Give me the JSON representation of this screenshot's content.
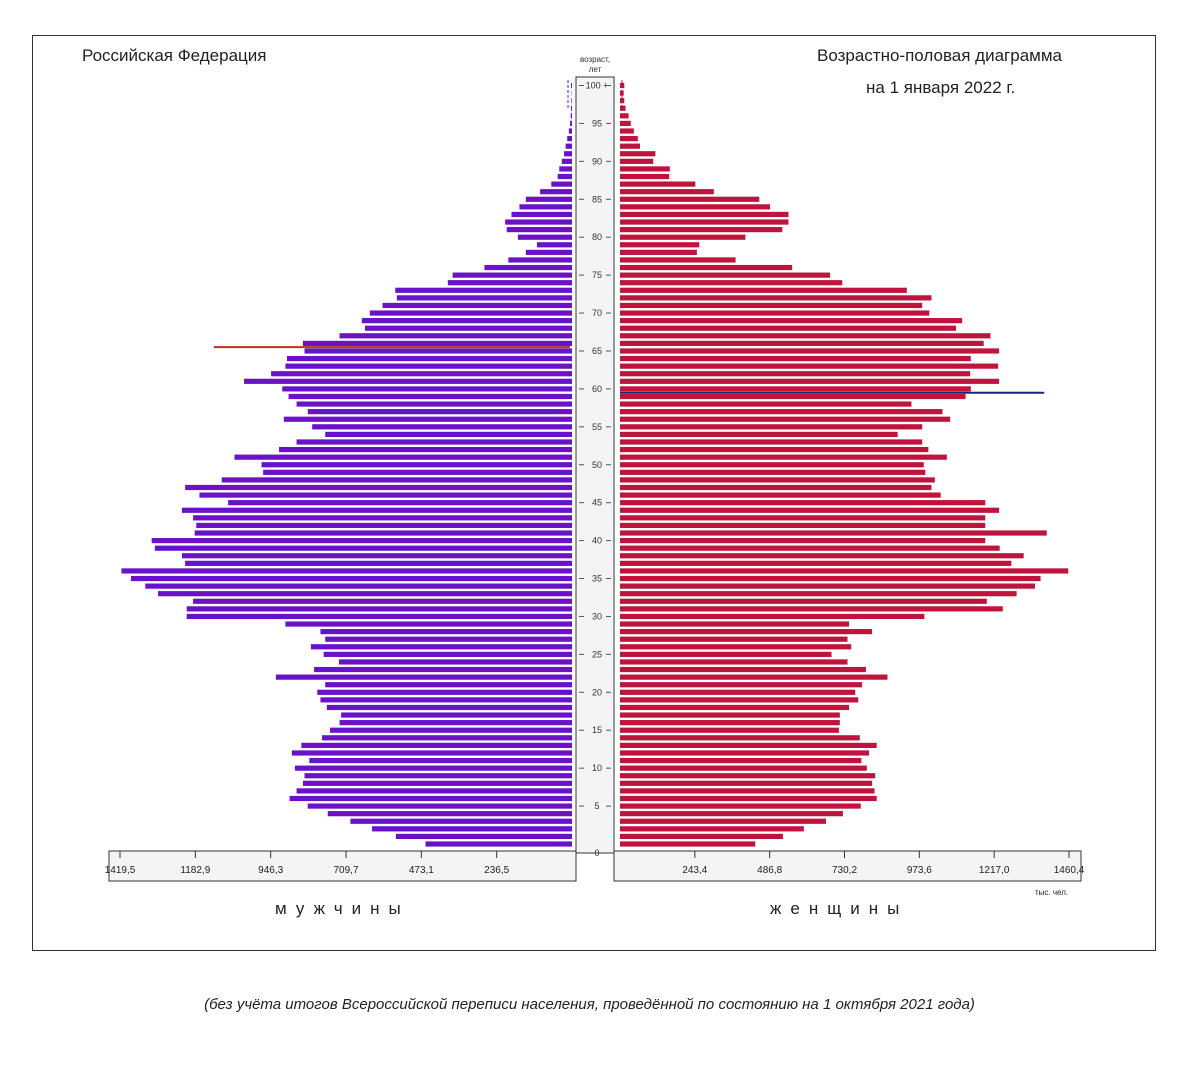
{
  "header": {
    "region": "Российская Федерация",
    "title_line1": "Возрастно-половая диаграмма",
    "title_line2": "на 1 января 2022 г."
  },
  "labels": {
    "men": "мужчины",
    "women": "женщины",
    "unit": "тыс. чел.",
    "footnote": "(без учёта итогов Всероссийской переписи населения, проведённой по состоянию на 1 октября 2021 года)"
  },
  "colors": {
    "men": "#6a12c8",
    "women": "#c0143c",
    "men_marker": "#c0301a",
    "women_marker": "#1a237e"
  },
  "chart_data": {
    "type": "bar",
    "orientation": "horizontal-pyramid",
    "age_axis": {
      "title": "возраст, лет",
      "range": [
        0,
        100
      ],
      "tick_labels": [
        "0",
        "5",
        "10",
        "15",
        "20",
        "25",
        "30",
        "35",
        "40",
        "45",
        "50",
        "55",
        "60",
        "65",
        "70",
        "75",
        "80",
        "85",
        "90",
        "95",
        "100 +"
      ]
    },
    "men_axis": {
      "xlim": [
        0,
        1419.5
      ],
      "tick_labels": [
        "1419,5",
        "1182,9",
        "946,3",
        "709,7",
        "473,1",
        "236,5"
      ]
    },
    "women_axis": {
      "xlim": [
        0,
        1460.4
      ],
      "tick_labels": [
        "243,4",
        "486,8",
        "730,2",
        "973,6",
        "1217,0",
        "1460,4"
      ]
    },
    "ages": [
      0,
      1,
      2,
      3,
      4,
      5,
      6,
      7,
      8,
      9,
      10,
      11,
      12,
      13,
      14,
      15,
      16,
      17,
      18,
      19,
      20,
      21,
      22,
      23,
      24,
      25,
      26,
      27,
      28,
      29,
      30,
      31,
      32,
      33,
      34,
      35,
      36,
      37,
      38,
      39,
      40,
      41,
      42,
      43,
      44,
      45,
      46,
      47,
      48,
      49,
      50,
      51,
      52,
      53,
      54,
      55,
      56,
      57,
      58,
      59,
      60,
      61,
      62,
      63,
      64,
      65,
      66,
      67,
      68,
      69,
      70,
      71,
      72,
      73,
      74,
      75,
      76,
      77,
      78,
      79,
      80,
      81,
      82,
      83,
      84,
      85,
      86,
      87,
      88,
      89,
      90,
      91,
      92,
      93,
      94,
      95,
      96,
      97,
      98,
      99,
      100
    ],
    "series": [
      {
        "name": "мужчины",
        "values": [
          460,
          553,
          628,
          696,
          767,
          830,
          887,
          865,
          845,
          840,
          870,
          825,
          880,
          850,
          785,
          760,
          730,
          725,
          770,
          790,
          800,
          775,
          930,
          810,
          732,
          780,
          820,
          775,
          790,
          900,
          1210,
          1210,
          1190,
          1300,
          1340,
          1385,
          1415,
          1215,
          1225,
          1310,
          1320,
          1185,
          1180,
          1190,
          1225,
          1080,
          1170,
          1215,
          1100,
          970,
          975,
          1060,
          920,
          865,
          775,
          816,
          905,
          830,
          865,
          890,
          910,
          1030,
          945,
          900,
          895,
          840,
          845,
          730,
          650,
          660,
          635,
          595,
          550,
          555,
          390,
          375,
          275,
          200,
          145,
          110,
          170,
          205,
          210,
          190,
          165,
          145,
          100,
          65,
          45,
          40,
          32,
          25,
          20,
          15,
          10,
          6,
          4,
          3,
          2,
          1,
          3
        ]
      },
      {
        "name": "женщины",
        "values": [
          440,
          530,
          598,
          670,
          725,
          783,
          835,
          828,
          820,
          830,
          803,
          785,
          810,
          835,
          780,
          712,
          715,
          715,
          745,
          775,
          765,
          787,
          870,
          800,
          740,
          688,
          752,
          740,
          820,
          745,
          990,
          1245,
          1193,
          1290,
          1350,
          1368,
          1458,
          1273,
          1313,
          1235,
          1188,
          1388,
          1188,
          1188,
          1233,
          1188,
          1043,
          1013,
          1024,
          993,
          988,
          1063,
          1003,
          983,
          903,
          983,
          1074,
          1049,
          948,
          1124,
          1141,
          1233,
          1139,
          1230,
          1141,
          1233,
          1183,
          1205,
          1093,
          1113,
          1006,
          983,
          1013,
          933,
          723,
          683,
          560,
          376,
          250,
          258,
          408,
          528,
          548,
          548,
          488,
          453,
          305,
          245,
          160,
          162,
          108,
          115,
          65,
          58,
          45,
          35,
          28,
          18,
          14,
          12,
          14
        ]
      }
    ],
    "markers": [
      {
        "series": "мужчины",
        "age": 65.5,
        "value": 1125
      },
      {
        "series": "женщины",
        "age": 59.5,
        "value": 1380
      }
    ]
  }
}
